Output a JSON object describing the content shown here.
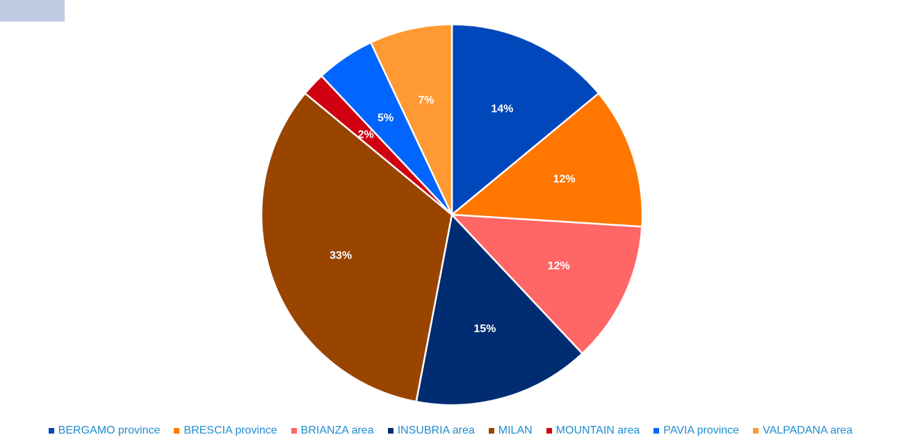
{
  "page": {
    "tab_color": "#bfcbe3",
    "legend_text_color": "#1f8ccf"
  },
  "chart_data": {
    "type": "pie",
    "title": "",
    "legend_position": "bottom",
    "slices": [
      {
        "name": "BERGAMO province",
        "value": 14,
        "label": "14%",
        "color": "#0047bb"
      },
      {
        "name": "BRESCIA province",
        "value": 12,
        "label": "12%",
        "color": "#ff7700"
      },
      {
        "name": "BRIANZA area",
        "value": 12,
        "label": "12%",
        "color": "#ff6666"
      },
      {
        "name": "INSUBRIA area",
        "value": 15,
        "label": "15%",
        "color": "#002d72"
      },
      {
        "name": "MILAN",
        "value": 33,
        "label": "33%",
        "color": "#994500"
      },
      {
        "name": "MOUNTAIN area",
        "value": 2,
        "label": "2%",
        "color": "#d00010"
      },
      {
        "name": "PAVIA province",
        "value": 5,
        "label": "5%",
        "color": "#0066ff"
      },
      {
        "name": "VALPADANA area",
        "value": 7,
        "label": "7%",
        "color": "#ff9933"
      }
    ]
  }
}
